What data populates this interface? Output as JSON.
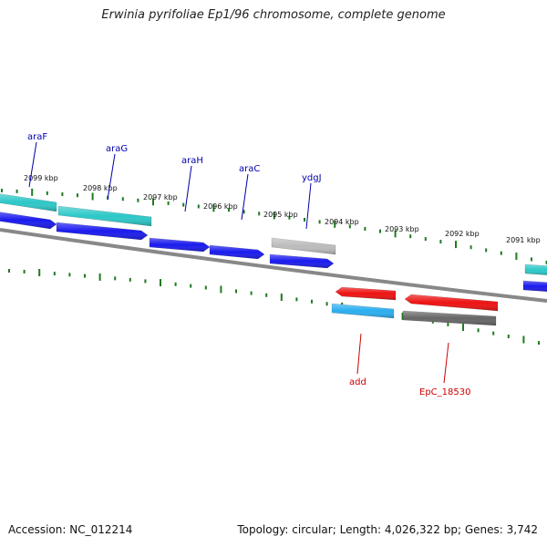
{
  "title": "Erwinia pyrifoliae Ep1/96 chromosome, complete genome",
  "footer": {
    "accession_label": "Accession:",
    "accession_value": "NC_012214",
    "topology_label": "Topology:",
    "topology_value": "circular",
    "length_label": "Length:",
    "length_value": "4,026,322 bp",
    "genes_label": "Genes:",
    "genes_value": "3,742"
  },
  "colors": {
    "backbone": "#888888",
    "tick": "#1f7a1f",
    "label_forward": "#0000aa",
    "label_reverse": "#cc0000",
    "gene_blue": "#1a1aee",
    "gene_cyan": "#2cc8c8",
    "gene_lightblue": "#2aaef0",
    "gene_red": "#ee1111",
    "gene_grey": "#bbbbbb",
    "gene_darkgrey": "#666666"
  },
  "scale_labels": [
    "2099 kbp",
    "2098 kbp",
    "2097 kbp",
    "2096 kbp",
    "2095 kbp",
    "2094 kbp",
    "2093 kbp",
    "2092 kbp",
    "2091 kbp"
  ],
  "gene_labels": [
    {
      "text": "araF",
      "strand": "forward"
    },
    {
      "text": "araG",
      "strand": "forward"
    },
    {
      "text": "araH",
      "strand": "forward"
    },
    {
      "text": "araC",
      "strand": "forward"
    },
    {
      "text": "ydgJ",
      "strand": "forward"
    },
    {
      "text": "add",
      "strand": "reverse"
    },
    {
      "text": "EpC_18530",
      "strand": "reverse"
    }
  ],
  "features": [
    {
      "id": "araF-cds",
      "color": "gene_cyan"
    },
    {
      "id": "araF-gene",
      "color": "gene_blue"
    },
    {
      "id": "araG-cds",
      "color": "gene_cyan"
    },
    {
      "id": "araG-gene",
      "color": "gene_blue"
    },
    {
      "id": "araH-gene",
      "color": "gene_blue"
    },
    {
      "id": "araC-gene",
      "color": "gene_blue"
    },
    {
      "id": "ydgJ-cds",
      "color": "gene_grey"
    },
    {
      "id": "ydgJ-gene",
      "color": "gene_blue"
    },
    {
      "id": "add-gene",
      "color": "gene_red"
    },
    {
      "id": "add-cds",
      "color": "gene_lightblue"
    },
    {
      "id": "EpC_18530-gene",
      "color": "gene_red"
    },
    {
      "id": "EpC_18530-cds",
      "color": "gene_darkgrey"
    },
    {
      "id": "edge-cds",
      "color": "gene_cyan"
    },
    {
      "id": "edge-gene",
      "color": "gene_blue"
    }
  ]
}
